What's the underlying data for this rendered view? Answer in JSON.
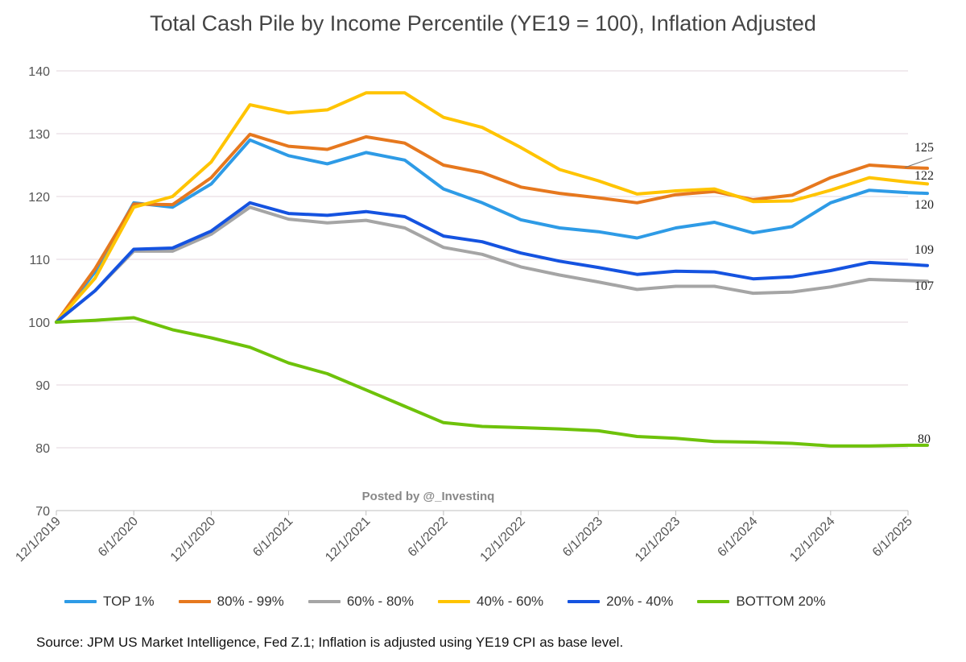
{
  "chart_data": {
    "type": "line",
    "title": "Total Cash Pile by Income Percentile (YE19 = 100), Inflation Adjusted",
    "source": "Source: JPM US Market Intelligence, Fed Z.1; Inflation is adjusted using YE19 CPI as base level.",
    "watermark": "Posted by @_Investinq",
    "ylim": [
      70,
      140
    ],
    "yticks": [
      "70",
      "80",
      "90",
      "100",
      "110",
      "120",
      "130",
      "140"
    ],
    "xtick_labels": [
      "12/1/2019",
      "6/1/2020",
      "12/1/2020",
      "6/1/2021",
      "12/1/2021",
      "6/1/2022",
      "12/1/2022",
      "6/1/2023",
      "12/1/2023",
      "6/1/2024",
      "12/1/2024",
      "6/1/2025"
    ],
    "grid": "horizontal",
    "legend": "bottom",
    "x": [
      0,
      0.5,
      1,
      1.5,
      2,
      2.5,
      3,
      3.5,
      4,
      4.5,
      5,
      5.5,
      6,
      6.5,
      7,
      7.5,
      8,
      8.5,
      9,
      9.5,
      10,
      10.5,
      11,
      11.25
    ],
    "series": [
      {
        "name": "TOP 1%",
        "color": "#2e9be6",
        "end_label": "120",
        "values": [
          100,
          108,
          119,
          118.3,
          122,
          129,
          126.5,
          125.2,
          127,
          125.8,
          121.2,
          119,
          116.3,
          115,
          114.4,
          113.4,
          115,
          115.9,
          114.2,
          115.2,
          119,
          121,
          120.6,
          120.5
        ]
      },
      {
        "name": "80% - 99%",
        "color": "#e6781e",
        "end_label": "125",
        "values": [
          100,
          108.5,
          118.8,
          118.7,
          123,
          129.9,
          128,
          127.5,
          129.5,
          128.5,
          125,
          123.8,
          121.5,
          120.5,
          119.8,
          119,
          120.3,
          120.8,
          119.5,
          120.2,
          123,
          125,
          124.6,
          124.5
        ]
      },
      {
        "name": "60% - 80%",
        "color": "#a5a5a5",
        "end_label": "107",
        "values": [
          100,
          105,
          111.3,
          111.3,
          114,
          118.3,
          116.4,
          115.8,
          116.2,
          115,
          111.9,
          110.8,
          108.8,
          107.5,
          106.4,
          105.2,
          105.7,
          105.7,
          104.6,
          104.8,
          105.6,
          106.8,
          106.6,
          106.5
        ]
      },
      {
        "name": "40% - 60%",
        "color": "#ffc400",
        "end_label": "122",
        "values": [
          100,
          107,
          118.3,
          120,
          125.5,
          134.6,
          133.3,
          133.8,
          136.5,
          136.5,
          132.6,
          131,
          127.8,
          124.3,
          122.5,
          120.4,
          120.9,
          121.2,
          119.2,
          119.3,
          121,
          123,
          122.3,
          122
        ]
      },
      {
        "name": "20% - 40%",
        "color": "#1553e0",
        "end_label": "109",
        "values": [
          100,
          105,
          111.6,
          111.8,
          114.5,
          119,
          117.3,
          117,
          117.6,
          116.8,
          113.7,
          112.8,
          111,
          109.7,
          108.7,
          107.6,
          108.1,
          108,
          106.9,
          107.2,
          108.2,
          109.5,
          109.2,
          109
        ]
      },
      {
        "name": "BOTTOM 20%",
        "color": "#6ec20a",
        "end_label": "80",
        "values": [
          100,
          100.3,
          100.7,
          98.8,
          97.5,
          96,
          93.5,
          91.8,
          89.2,
          86.6,
          84,
          83.4,
          83.2,
          83,
          82.7,
          81.8,
          81.5,
          81,
          80.9,
          80.7,
          80.3,
          80.3,
          80.4,
          80.4
        ]
      }
    ]
  }
}
